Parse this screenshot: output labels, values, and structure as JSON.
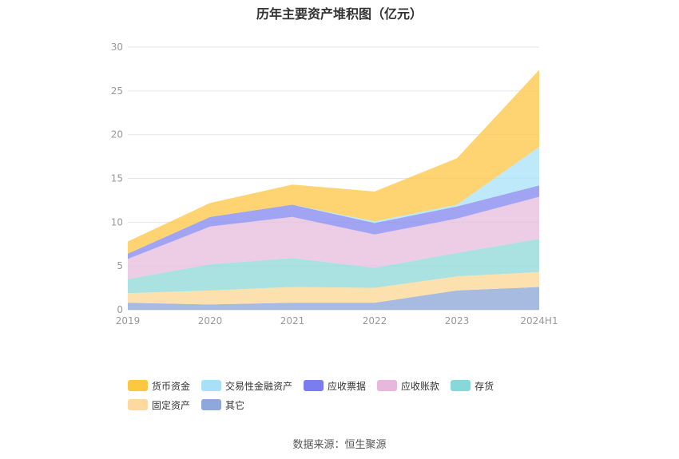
{
  "chart_data": {
    "type": "area",
    "title": "历年主要资产堆积图（亿元）",
    "categories": [
      "2019",
      "2020",
      "2021",
      "2022",
      "2023",
      "2024H1"
    ],
    "ylim": [
      0,
      30
    ],
    "yticks": [
      0,
      5,
      10,
      15,
      20,
      25,
      30
    ],
    "grid": true,
    "legend_position": "bottom",
    "series": [
      {
        "name": "其它",
        "color": "#91a9d8",
        "values": [
          0.8,
          0.6,
          0.8,
          0.8,
          2.2,
          2.6
        ]
      },
      {
        "name": "固定资产",
        "color": "#fbd99a",
        "values": [
          1.1,
          1.6,
          1.8,
          1.7,
          1.6,
          1.7
        ]
      },
      {
        "name": "存货",
        "color": "#93dbd9",
        "values": [
          1.6,
          3.0,
          3.3,
          2.3,
          2.7,
          3.8
        ]
      },
      {
        "name": "应收账款",
        "color": "#e9bfdf",
        "values": [
          2.3,
          4.3,
          4.7,
          3.8,
          3.9,
          4.8
        ]
      },
      {
        "name": "应收票据",
        "color": "#8a8df0",
        "values": [
          0.6,
          1.1,
          1.4,
          1.3,
          1.4,
          1.3
        ]
      },
      {
        "name": "交易性金融资产",
        "color": "#ade3f9",
        "values": [
          0.0,
          0.0,
          0.0,
          0.2,
          0.2,
          4.4
        ]
      },
      {
        "name": "货币资金",
        "color": "#fdc94d",
        "values": [
          1.4,
          1.6,
          2.3,
          3.4,
          5.3,
          8.8
        ]
      }
    ]
  },
  "source": "数据来源：恒生聚源"
}
